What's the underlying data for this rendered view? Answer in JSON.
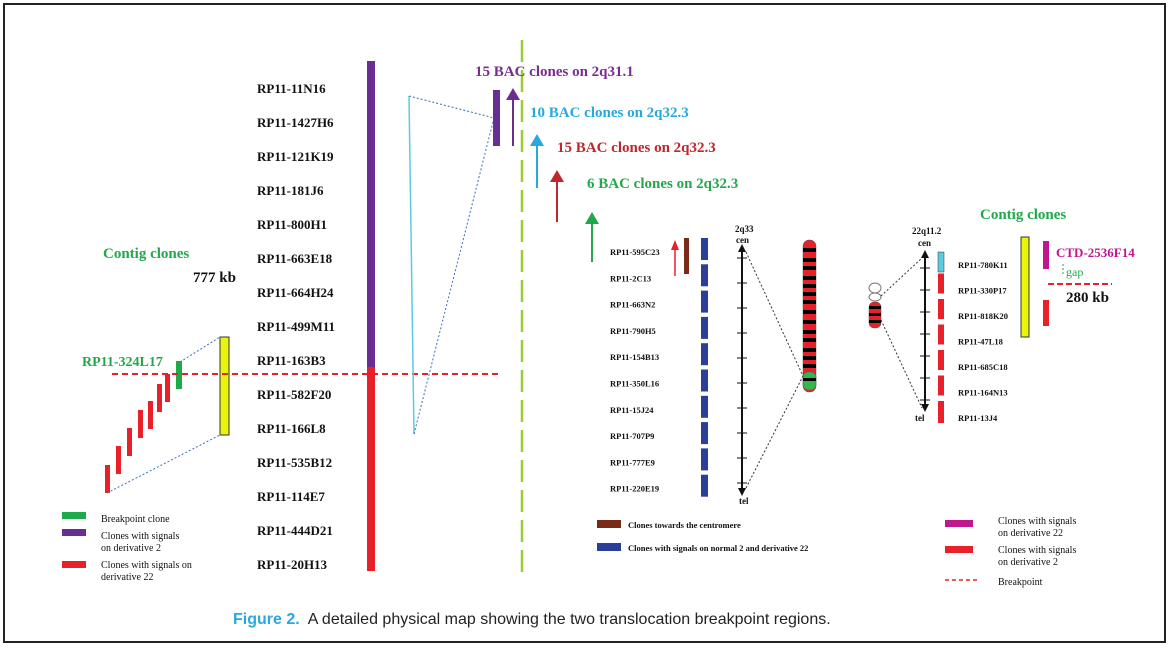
{
  "figure": {
    "caption_label": "Figure 2.",
    "caption_text": "A detailed physical map showing the two translocation breakpoint regions."
  },
  "left_panel": {
    "contig_title": "Contig clones",
    "contig_size": "777 kb",
    "breakpoint_clone_label": "RP11-324L17",
    "clones": [
      {
        "name": "RP11-11N16",
        "group": "der2"
      },
      {
        "name": "RP11-1427H6",
        "group": "der2"
      },
      {
        "name": "RP11-121K19",
        "group": "der2"
      },
      {
        "name": "RP11-181J6",
        "group": "der2"
      },
      {
        "name": "RP11-800H1",
        "group": "der2"
      },
      {
        "name": "RP11-663E18",
        "group": "der2"
      },
      {
        "name": "RP11-664H24",
        "group": "der2"
      },
      {
        "name": "RP11-499M11",
        "group": "der2"
      },
      {
        "name": "RP11-163B3",
        "group": "der2"
      },
      {
        "name": "RP11-582F20",
        "group": "der22"
      },
      {
        "name": "RP11-166L8",
        "group": "der22"
      },
      {
        "name": "RP11-535B12",
        "group": "der22"
      },
      {
        "name": "RP11-114E7",
        "group": "der22"
      },
      {
        "name": "RP11-444D21",
        "group": "der22"
      },
      {
        "name": "RP11-20H13",
        "group": "der22"
      }
    ],
    "legend": [
      {
        "label": "Breakpoint clone",
        "color": "#1faa4a"
      },
      {
        "label": "Clones with signals on derivative 2",
        "color": "#6a2d91"
      },
      {
        "label": "Clones with signals on derivative 22",
        "color": "#e8202a"
      }
    ]
  },
  "bac_labels": [
    {
      "text": "15 BAC clones on 2q31.1",
      "color": "#7b2c8f"
    },
    {
      "text": "10 BAC clones on 2q32.3",
      "color": "#29a8df"
    },
    {
      "text": "15 BAC clones on 2q32.3",
      "color": "#c0272d"
    },
    {
      "text": "6 BAC clones on 2q32.3",
      "color": "#22a84a"
    }
  ],
  "middle_panel": {
    "band_top": "2q33",
    "cen": "cen",
    "tel": "tel",
    "clones": [
      "RP11-595C23",
      "RP11-2C13",
      "RP11-663N2",
      "RP11-790H5",
      "RP11-154B13",
      "RP11-350L16",
      "RP11-15J24",
      "RP11-707P9",
      "RP11-777E9",
      "RP11-220E19"
    ],
    "legend": [
      {
        "label": "Clones towards the centromere",
        "color": "#7a2a18"
      },
      {
        "label": "Clones with signals on normal 2 and derivative 22",
        "color": "#2b3f99"
      }
    ]
  },
  "right_panel": {
    "band_top": "22q11.2",
    "cen": "cen",
    "tel": "tel",
    "contig_title": "Contig clones",
    "ctd_label": "CTD-2536F14",
    "gap_label": "gap",
    "gap_size": "280 kb",
    "clones": [
      "RP11-780K11",
      "RP11-330P17",
      "RP11-818K20",
      "RP11-47L18",
      "RP11-685C18",
      "RP11-164N13",
      "RP11-13J4"
    ],
    "legend": [
      {
        "label": "Clones with signals on derivative 22",
        "color": "#c0168f"
      },
      {
        "label": "Clones with signals on derivative 2",
        "color": "#e8202a"
      },
      {
        "label": "Breakpoint",
        "color": "#e8202a"
      }
    ]
  }
}
